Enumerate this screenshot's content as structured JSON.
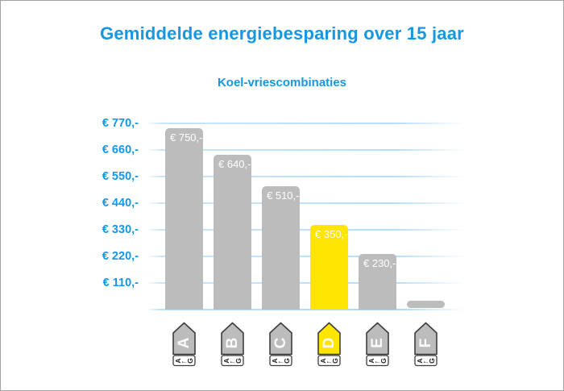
{
  "title": "Gemiddelde energiebesparing over 15 jaar",
  "subtitle": "Koel-vriescombinaties",
  "colors": {
    "accent_blue": "#1697e2",
    "bar_gray": "#bcbcbc",
    "bar_yellow": "#ffe500",
    "gridline_blue": "#bee1fa",
    "bar_label_white": "#ffffff",
    "icon_outline": "#3d3d3d",
    "icon_letter_white": "rgba(255,255,255,0.92)",
    "icon_strip_text": "#1a1a1a",
    "icon_strip_bg": "#ffffff"
  },
  "y_axis": {
    "ticks": [
      {
        "label": "€ 770,-",
        "value": 770
      },
      {
        "label": "€ 660,-",
        "value": 660
      },
      {
        "label": "€ 550,-",
        "value": 550
      },
      {
        "label": "€ 440,-",
        "value": 440
      },
      {
        "label": "€ 330,-",
        "value": 330
      },
      {
        "label": "€ 220,-",
        "value": 220
      },
      {
        "label": "€ 110,-",
        "value": 110
      }
    ]
  },
  "x_axis": {
    "icon": "energy-label-tag",
    "scale_start": "A",
    "scale_arrow": "←",
    "scale_end": "G"
  },
  "chart_data": {
    "type": "bar",
    "title": "Gemiddelde energiebesparing over 15 jaar",
    "subtitle": "Koel-vriescombinaties",
    "categories": [
      "A",
      "B",
      "C",
      "D",
      "E",
      "F"
    ],
    "values": [
      750,
      640,
      510,
      350,
      230,
      30
    ],
    "bar_labels": [
      "€ 750,-",
      "€ 640,-",
      "€ 510,-",
      "€ 350,-",
      "€ 230,-",
      ""
    ],
    "highlight_index": 3,
    "currency": "EUR",
    "xlabel": "",
    "ylabel": "",
    "ylim": [
      0,
      770
    ],
    "ytick_step": 110,
    "grid": true,
    "legend": false
  }
}
